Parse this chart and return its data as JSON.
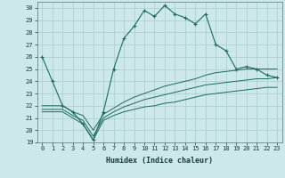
{
  "xlabel": "Humidex (Indice chaleur)",
  "xlim": [
    -0.5,
    23.5
  ],
  "ylim": [
    19,
    30.5
  ],
  "yticks": [
    19,
    20,
    21,
    22,
    23,
    24,
    25,
    26,
    27,
    28,
    29,
    30
  ],
  "xticks": [
    0,
    1,
    2,
    3,
    4,
    5,
    6,
    7,
    8,
    9,
    10,
    11,
    12,
    13,
    14,
    15,
    16,
    17,
    18,
    19,
    20,
    21,
    22,
    23
  ],
  "background_color": "#cce8e8",
  "grid_color": "#aacccc",
  "line_color": "#1a6b5a",
  "series_main": [
    26,
    24,
    22,
    21.5,
    20.5,
    19.2,
    21.5,
    25.0,
    27.5,
    28.5,
    29.8,
    29.3,
    30.2,
    29.5,
    29.2,
    28.7,
    29.5,
    27.0,
    26.5,
    25.0,
    25.2,
    25.0,
    24.5,
    24.3
  ],
  "series_line1": [
    21.5,
    21.5,
    21.5,
    21.0,
    20.5,
    19.2,
    20.8,
    21.2,
    21.5,
    21.7,
    21.9,
    22.0,
    22.2,
    22.3,
    22.5,
    22.7,
    22.9,
    23.0,
    23.1,
    23.2,
    23.3,
    23.4,
    23.5,
    23.5
  ],
  "series_line2": [
    21.7,
    21.7,
    21.7,
    21.2,
    20.8,
    19.5,
    21.0,
    21.5,
    21.9,
    22.2,
    22.5,
    22.7,
    22.9,
    23.1,
    23.3,
    23.5,
    23.7,
    23.8,
    23.9,
    24.0,
    24.1,
    24.2,
    24.2,
    24.3
  ],
  "series_line3": [
    22.0,
    22.0,
    22.0,
    21.5,
    21.2,
    20.0,
    21.3,
    21.8,
    22.3,
    22.7,
    23.0,
    23.3,
    23.6,
    23.8,
    24.0,
    24.2,
    24.5,
    24.7,
    24.8,
    24.9,
    25.0,
    25.0,
    25.0,
    25.0
  ]
}
